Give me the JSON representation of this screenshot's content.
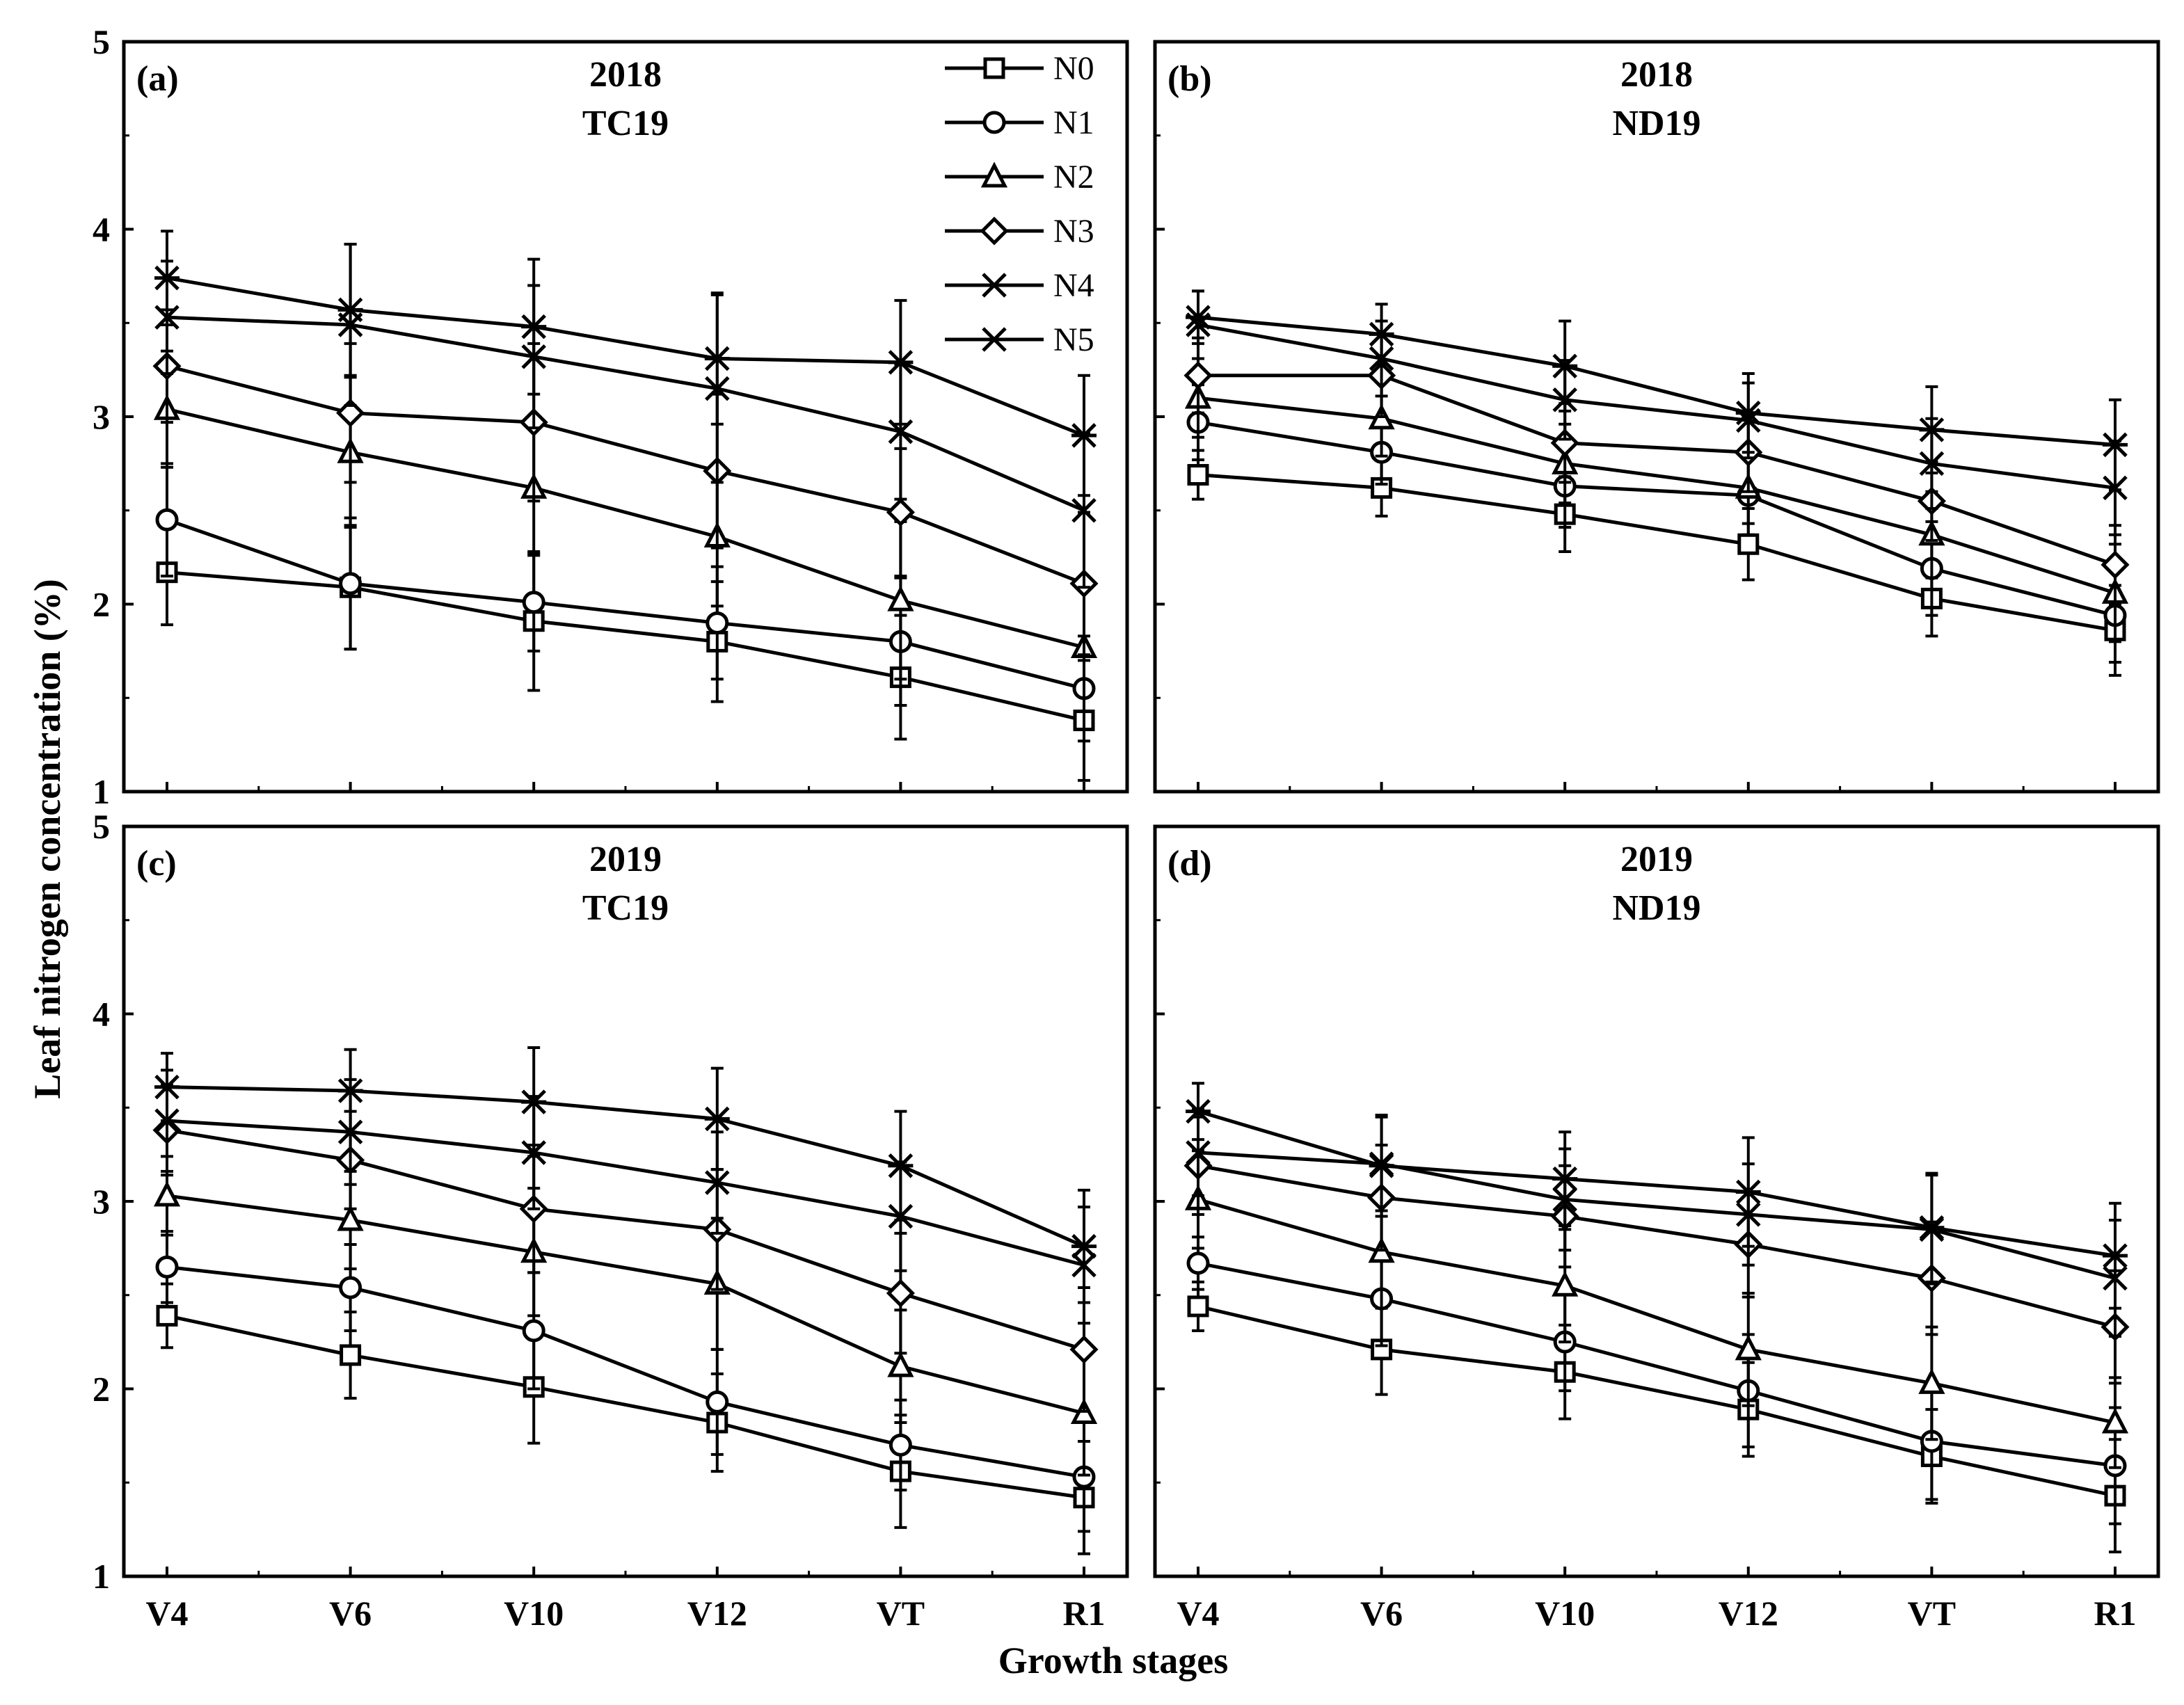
{
  "chart_data": {
    "type": "line",
    "ylabel": "Leaf nitrogen concentration (%)",
    "xlabel": "Growth stages",
    "categories": [
      "V4",
      "V6",
      "V10",
      "V12",
      "VT",
      "R1"
    ],
    "ylim": [
      1,
      5
    ],
    "yticks": [
      "1",
      "2",
      "3",
      "4",
      "5"
    ],
    "legend": {
      "position": "top-right of panel (a)",
      "entries": [
        {
          "name": "N0",
          "marker": "square"
        },
        {
          "name": "N1",
          "marker": "circle"
        },
        {
          "name": "N2",
          "marker": "triangle"
        },
        {
          "name": "N3",
          "marker": "diamond"
        },
        {
          "name": "N4",
          "marker": "x"
        },
        {
          "name": "N5",
          "marker": "star"
        }
      ]
    },
    "panels": [
      {
        "label": "(a)",
        "year": "2018",
        "cultivar": "TC19",
        "series": [
          {
            "name": "N0",
            "values": [
              2.17,
              2.09,
              1.91,
              1.8,
              1.61,
              1.38
            ],
            "errors": [
              0.28,
              0.33,
              0.37,
              0.32,
              0.33,
              0.32
            ]
          },
          {
            "name": "N1",
            "values": [
              2.45,
              2.11,
              2.01,
              1.9,
              1.8,
              1.55
            ],
            "errors": [
              0.3,
              0.35,
              0.26,
              0.3,
              0.34,
              0.28
            ]
          },
          {
            "name": "N2",
            "values": [
              3.04,
              2.81,
              2.62,
              2.36,
              2.02,
              1.77
            ],
            "errors": [
              0.31,
              0.4,
              0.36,
              0.37,
              0.42,
              0.34
            ]
          },
          {
            "name": "N3",
            "values": [
              3.27,
              3.02,
              2.97,
              2.71,
              2.49,
              2.11
            ],
            "errors": [
              0.3,
              0.37,
              0.42,
              0.41,
              0.34,
              0.38
            ]
          },
          {
            "name": "N4",
            "values": [
              3.53,
              3.49,
              3.32,
              3.15,
              2.92,
              2.5
            ],
            "errors": [
              0.3,
              0.43,
              0.38,
              0.5,
              0.36,
              0.41
            ]
          },
          {
            "name": "N5",
            "values": [
              3.74,
              3.57,
              3.48,
              3.31,
              3.29,
              2.9
            ],
            "errors": [
              0.25,
              0.35,
              0.36,
              0.35,
              0.33,
              0.32
            ]
          }
        ]
      },
      {
        "label": "(b)",
        "year": "2018",
        "cultivar": "ND19",
        "series": [
          {
            "name": "N0",
            "values": [
              2.69,
              2.62,
              2.48,
              2.32,
              2.03,
              1.86
            ],
            "errors": [
              0.13,
              0.15,
              0.2,
              0.19,
              0.2,
              0.24
            ]
          },
          {
            "name": "N1",
            "values": [
              2.97,
              2.81,
              2.63,
              2.58,
              2.19,
              1.94
            ],
            "errors": [
              0.2,
              0.17,
              0.22,
              0.21,
              0.25,
              0.25
            ]
          },
          {
            "name": "N2",
            "values": [
              3.1,
              2.99,
              2.75,
              2.62,
              2.37,
              2.06
            ],
            "errors": [
              0.21,
              0.2,
              0.21,
              0.19,
              0.23,
              0.26
            ]
          },
          {
            "name": "N3",
            "values": [
              3.22,
              3.22,
              2.86,
              2.81,
              2.55,
              2.21
            ],
            "errors": [
              0.2,
              0.22,
              0.21,
              0.21,
              0.21,
              0.21
            ]
          },
          {
            "name": "N4",
            "values": [
              3.49,
              3.31,
              3.09,
              2.98,
              2.75,
              2.62
            ],
            "errors": [
              0.18,
              0.2,
              0.21,
              0.2,
              0.24,
              0.25
            ]
          },
          {
            "name": "N5",
            "values": [
              3.53,
              3.44,
              3.27,
              3.02,
              2.93,
              2.85
            ],
            "errors": [
              0.14,
              0.16,
              0.24,
              0.21,
              0.23,
              0.24
            ]
          }
        ]
      },
      {
        "label": "(c)",
        "year": "2019",
        "cultivar": "TC19",
        "series": [
          {
            "name": "N0",
            "values": [
              2.39,
              2.18,
              2.01,
              1.82,
              1.56,
              1.42
            ],
            "errors": [
              0.17,
              0.23,
              0.3,
              0.26,
              0.3,
              0.3
            ]
          },
          {
            "name": "N1",
            "values": [
              2.65,
              2.54,
              2.31,
              1.93,
              1.7,
              1.53
            ],
            "errors": [
              0.19,
              0.23,
              0.31,
              0.28,
              0.24,
              0.29
            ]
          },
          {
            "name": "N2",
            "values": [
              3.03,
              2.9,
              2.73,
              2.56,
              2.12,
              1.87
            ],
            "errors": [
              0.21,
              0.26,
              0.34,
              0.35,
              0.3,
              0.33
            ]
          },
          {
            "name": "N3",
            "values": [
              3.38,
              3.22,
              2.96,
              2.85,
              2.51,
              2.21
            ],
            "errors": [
              0.24,
              0.26,
              0.34,
              0.32,
              0.32,
              0.33
            ]
          },
          {
            "name": "N4",
            "values": [
              3.43,
              3.37,
              3.26,
              3.1,
              2.92,
              2.66
            ],
            "errors": [
              0.27,
              0.28,
              0.3,
              0.27,
              0.29,
              0.31
            ]
          },
          {
            "name": "N5",
            "values": [
              3.61,
              3.59,
              3.53,
              3.44,
              3.19,
              2.76
            ],
            "errors": [
              0.18,
              0.22,
              0.29,
              0.27,
              0.29,
              0.3
            ]
          }
        ]
      },
      {
        "label": "(d)",
        "year": "2019",
        "cultivar": "ND19",
        "series": [
          {
            "name": "N0",
            "values": [
              2.44,
              2.21,
              2.09,
              1.89,
              1.64,
              1.43
            ],
            "errors": [
              0.13,
              0.24,
              0.25,
              0.25,
              0.25,
              0.3
            ]
          },
          {
            "name": "N1",
            "values": [
              2.67,
              2.48,
              2.25,
              1.99,
              1.72,
              1.59
            ],
            "errors": [
              0.14,
              0.25,
              0.26,
              0.3,
              0.31,
              0.31
            ]
          },
          {
            "name": "N2",
            "values": [
              3.01,
              2.73,
              2.55,
              2.21,
              2.03,
              1.82
            ],
            "errors": [
              0.26,
              0.3,
              0.3,
              0.3,
              0.3,
              0.24
            ]
          },
          {
            "name": "N3",
            "values": [
              3.19,
              3.02,
              2.92,
              2.77,
              2.59,
              2.33
            ],
            "errors": [
              0.26,
              0.28,
              0.27,
              0.28,
              0.3,
              0.3
            ]
          },
          {
            "name": "N4",
            "values": [
              3.26,
              3.2,
              3.01,
              2.93,
              2.85,
              2.59
            ],
            "errors": [
              0.23,
              0.25,
              0.27,
              0.27,
              0.29,
              0.31
            ]
          },
          {
            "name": "N5",
            "values": [
              3.48,
              3.19,
              3.12,
              3.05,
              2.86,
              2.71
            ],
            "errors": [
              0.15,
              0.27,
              0.25,
              0.29,
              0.29,
              0.28
            ]
          }
        ]
      }
    ]
  }
}
